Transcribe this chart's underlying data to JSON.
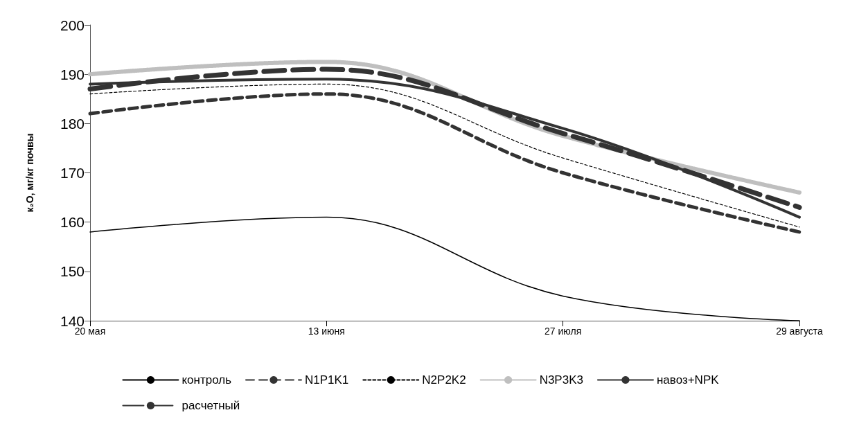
{
  "chart_data": {
    "type": "line",
    "ylabel": "к₂O, мг/кг почвы",
    "categories": [
      "20 мая",
      "13 июня",
      "27 июля",
      "29 августа"
    ],
    "ylim": [
      140,
      200
    ],
    "yticks": [
      140,
      150,
      160,
      170,
      180,
      190,
      200
    ],
    "grid": false,
    "legend": "bottom",
    "marker": "none",
    "series": [
      {
        "name": "контроль",
        "color": "#000000",
        "line_style": "solid",
        "values": [
          158,
          161,
          145,
          140
        ]
      },
      {
        "name": "N1P1K1",
        "color": "#333333",
        "line_style": "dashed",
        "values": [
          182,
          186,
          170,
          158
        ]
      },
      {
        "name": "N2P2K2",
        "color": "#000000",
        "line_style": "dashed",
        "values": [
          186,
          188,
          173,
          159
        ]
      },
      {
        "name": "N3P3K3",
        "color": "#bfbfbf",
        "line_style": "dotted",
        "values": [
          190,
          192.5,
          177.5,
          166
        ]
      },
      {
        "name": "навоз+NPK",
        "color": "#333333",
        "line_style": "solid",
        "values": [
          188,
          189,
          179,
          161
        ]
      },
      {
        "name": "расчетный",
        "color": "#333333",
        "line_style": "dashed",
        "values": [
          187,
          191,
          178,
          163
        ]
      }
    ]
  }
}
